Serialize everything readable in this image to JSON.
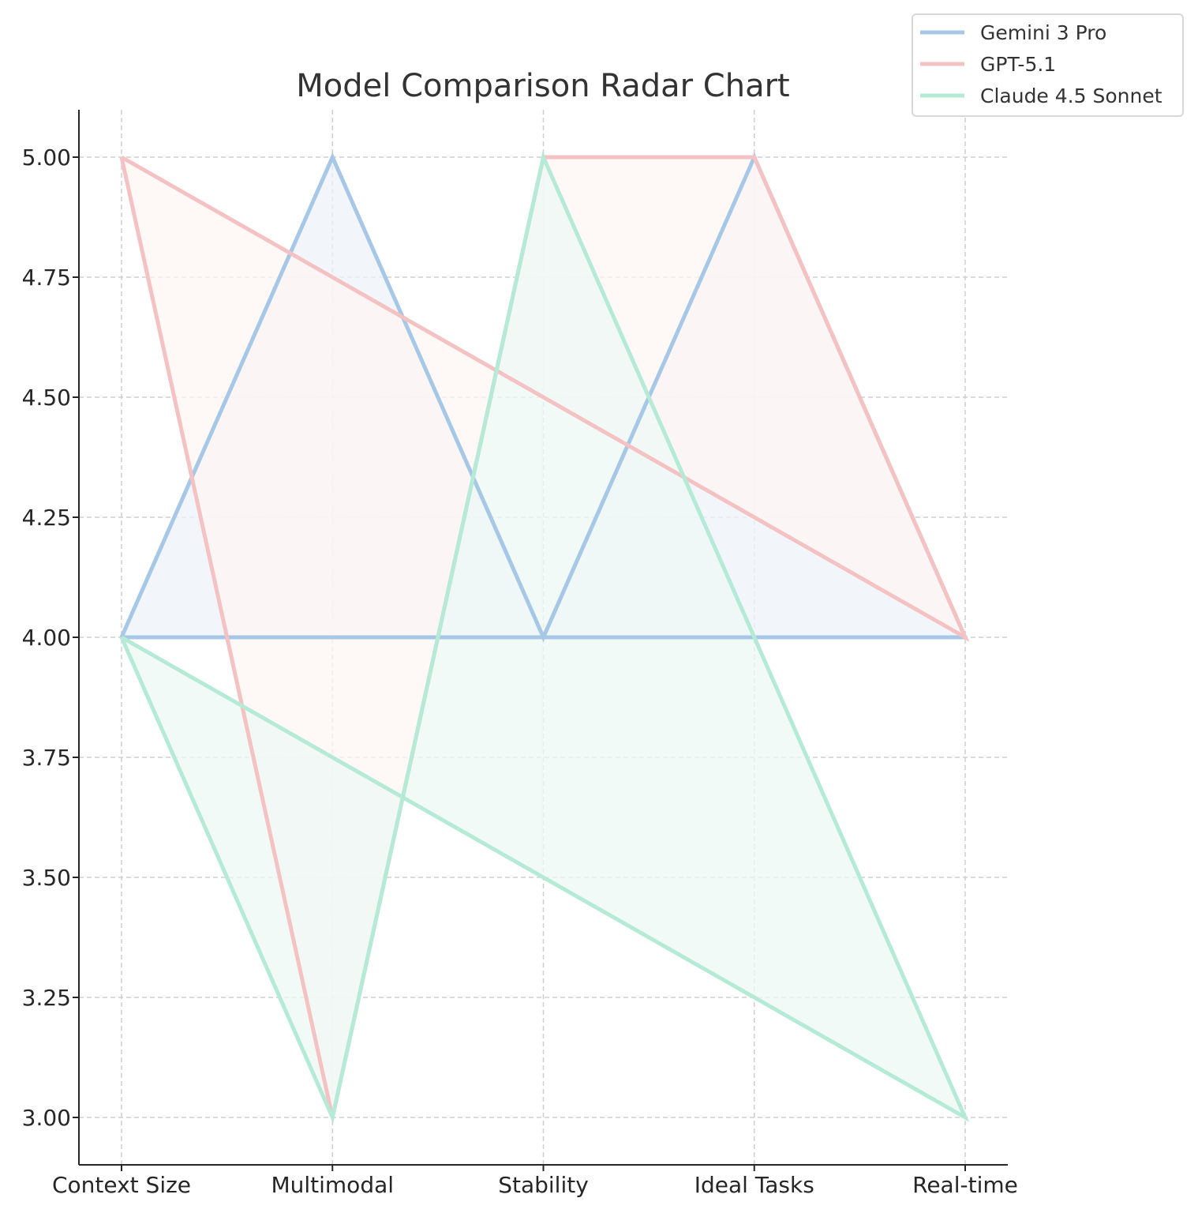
{
  "chart_data": {
    "type": "line",
    "title": "Model Comparison Radar Chart",
    "xlabel": "",
    "ylabel": "",
    "categories": [
      "Context Size",
      "Multimodal",
      "Stability",
      "Ideal Tasks",
      "Real-time"
    ],
    "ylim": [
      2.9,
      5.1
    ],
    "yticks": [
      "3.00",
      "3.25",
      "3.50",
      "3.75",
      "4.00",
      "4.25",
      "4.50",
      "4.75",
      "5.00"
    ],
    "grid": true,
    "legend_position": "top-right",
    "filled": true,
    "series": [
      {
        "name": "Gemini 3 Pro",
        "color": "#a7c7e7",
        "fill": "#eef3f9",
        "polygon": [
          [
            "Context Size",
            4
          ],
          [
            "Multimodal",
            5
          ],
          [
            "Stability",
            4
          ],
          [
            "Ideal Tasks",
            5
          ],
          [
            "Real-time",
            4
          ],
          [
            "Context Size",
            4
          ]
        ]
      },
      {
        "name": "GPT-5.1",
        "color": "#f4c2c2",
        "fill": "#fdf5f3",
        "polygon": [
          [
            "Context Size",
            5
          ],
          [
            "Multimodal",
            3
          ],
          [
            "Stability",
            5
          ],
          [
            "Ideal Tasks",
            5
          ],
          [
            "Real-time",
            4
          ],
          [
            "Context Size",
            5
          ]
        ]
      },
      {
        "name": "Claude 4.5 Sonnet",
        "color": "#b5ead7",
        "fill": "#eef8f4",
        "polygon": [
          [
            "Context Size",
            4
          ],
          [
            "Multimodal",
            3
          ],
          [
            "Stability",
            5
          ],
          [
            "Ideal Tasks",
            4
          ],
          [
            "Real-time",
            3
          ],
          [
            "Context Size",
            4
          ]
        ]
      }
    ]
  }
}
